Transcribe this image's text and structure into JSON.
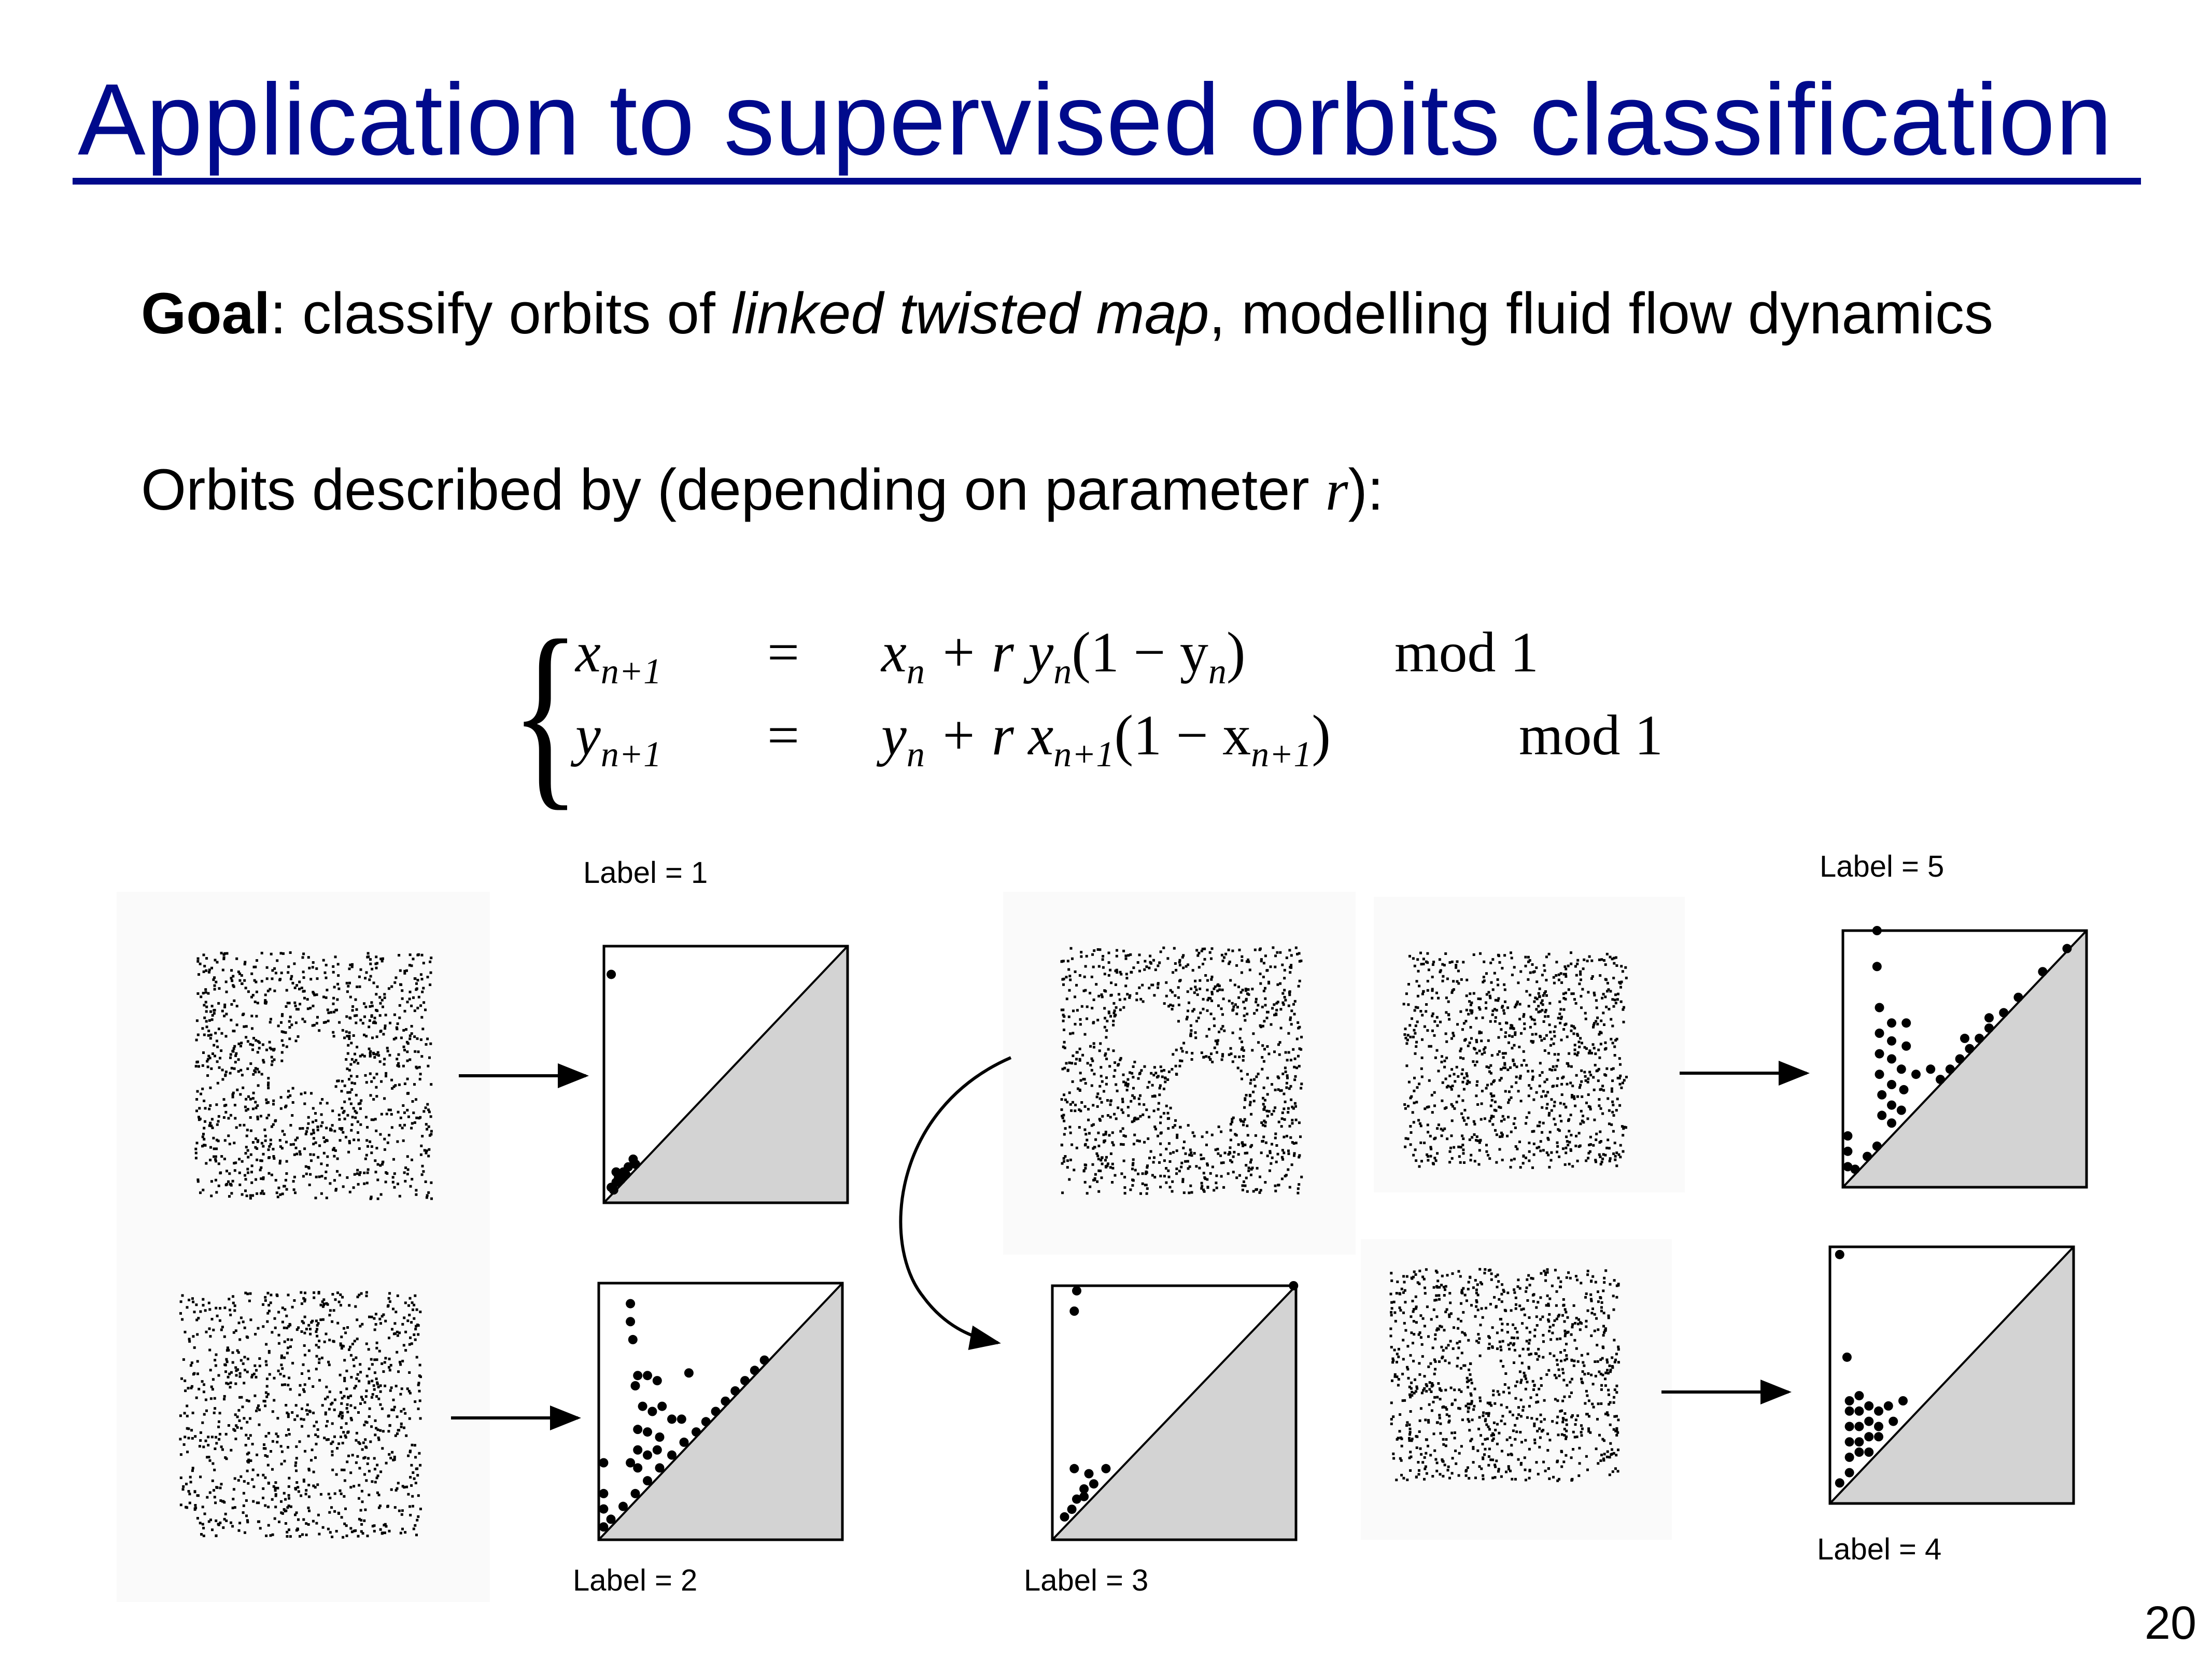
{
  "slide": {
    "title": "Application to supervised orbits classification",
    "goal_bold": "Goal",
    "goal_colon": ": classify orbits of ",
    "goal_italic": "linked twisted map",
    "goal_rest": ", modelling fluid flow dynamics",
    "orbits_text": "Orbits described by (depending on parameter ",
    "orbits_var": "r",
    "orbits_end": "):",
    "page_number": "20"
  },
  "equations": {
    "line1": {
      "lhs": "x",
      "lhs_sub": "n+1",
      "eq": "=",
      "rhs_a": "x",
      "rhs_a_sub": "n",
      "rhs_b": " + r y",
      "rhs_b_sub": "n",
      "rhs_c": "(1 − y",
      "rhs_c_sub": "n",
      "rhs_d": ")",
      "mod": "mod 1"
    },
    "line2": {
      "lhs": "y",
      "lhs_sub": "n+1",
      "eq": "=",
      "rhs_a": "y",
      "rhs_a_sub": "n",
      "rhs_b": " + r x",
      "rhs_b_sub": "n+1",
      "rhs_c": "(1 − x",
      "rhs_c_sub": "n+1",
      "rhs_d": ")",
      "mod": "mod 1"
    }
  },
  "labels": {
    "l1": "Label = 1",
    "l2": "Label = 2",
    "l3": "Label = 3",
    "l4": "Label = 4",
    "l5": "Label = 5"
  },
  "chart_data": [
    {
      "type": "scatter",
      "label": "Label = 1",
      "points": [
        [
          0.03,
          0.89
        ],
        [
          0.03,
          0.06
        ],
        [
          0.05,
          0.08
        ],
        [
          0.06,
          0.1
        ],
        [
          0.08,
          0.12
        ],
        [
          0.1,
          0.14
        ],
        [
          0.12,
          0.17
        ],
        [
          0.04,
          0.05
        ],
        [
          0.07,
          0.09
        ],
        [
          0.09,
          0.11
        ],
        [
          0.05,
          0.12
        ],
        [
          0.13,
          0.15
        ]
      ]
    },
    {
      "type": "scatter",
      "label": "Label = 2",
      "points": [
        [
          0.13,
          0.92
        ],
        [
          0.13,
          0.85
        ],
        [
          0.14,
          0.78
        ],
        [
          0.16,
          0.64
        ],
        [
          0.2,
          0.64
        ],
        [
          0.24,
          0.62
        ],
        [
          0.37,
          0.65
        ],
        [
          0.15,
          0.6
        ],
        [
          0.18,
          0.52
        ],
        [
          0.22,
          0.5
        ],
        [
          0.26,
          0.52
        ],
        [
          0.3,
          0.47
        ],
        [
          0.34,
          0.47
        ],
        [
          0.16,
          0.43
        ],
        [
          0.2,
          0.42
        ],
        [
          0.25,
          0.4
        ],
        [
          0.16,
          0.35
        ],
        [
          0.2,
          0.33
        ],
        [
          0.24,
          0.35
        ],
        [
          0.13,
          0.3
        ],
        [
          0.16,
          0.28
        ],
        [
          0.02,
          0.3
        ],
        [
          0.02,
          0.18
        ],
        [
          0.02,
          0.12
        ],
        [
          0.02,
          0.05
        ],
        [
          0.4,
          0.42
        ],
        [
          0.44,
          0.46
        ],
        [
          0.48,
          0.5
        ],
        [
          0.52,
          0.54
        ],
        [
          0.56,
          0.58
        ],
        [
          0.6,
          0.62
        ],
        [
          0.64,
          0.66
        ],
        [
          0.68,
          0.7
        ],
        [
          0.05,
          0.08
        ],
        [
          0.1,
          0.13
        ],
        [
          0.15,
          0.18
        ],
        [
          0.2,
          0.23
        ],
        [
          0.25,
          0.28
        ],
        [
          0.3,
          0.33
        ],
        [
          0.35,
          0.38
        ]
      ]
    },
    {
      "type": "scatter",
      "label": "Label = 3",
      "points": [
        [
          0.1,
          0.98
        ],
        [
          0.09,
          0.9
        ],
        [
          0.99,
          1.0
        ],
        [
          0.09,
          0.28
        ],
        [
          0.15,
          0.26
        ],
        [
          0.22,
          0.28
        ],
        [
          0.13,
          0.2
        ],
        [
          0.17,
          0.22
        ],
        [
          0.1,
          0.16
        ],
        [
          0.05,
          0.09
        ],
        [
          0.08,
          0.12
        ],
        [
          0.13,
          0.17
        ]
      ]
    },
    {
      "type": "scatter",
      "label": "Label = 4",
      "points": [
        [
          0.04,
          0.97
        ],
        [
          0.07,
          0.57
        ],
        [
          0.08,
          0.4
        ],
        [
          0.12,
          0.42
        ],
        [
          0.08,
          0.36
        ],
        [
          0.12,
          0.36
        ],
        [
          0.16,
          0.38
        ],
        [
          0.2,
          0.36
        ],
        [
          0.24,
          0.38
        ],
        [
          0.3,
          0.4
        ],
        [
          0.08,
          0.3
        ],
        [
          0.12,
          0.3
        ],
        [
          0.16,
          0.32
        ],
        [
          0.2,
          0.3
        ],
        [
          0.26,
          0.32
        ],
        [
          0.08,
          0.24
        ],
        [
          0.12,
          0.24
        ],
        [
          0.16,
          0.26
        ],
        [
          0.2,
          0.26
        ],
        [
          0.08,
          0.18
        ],
        [
          0.12,
          0.2
        ],
        [
          0.16,
          0.2
        ],
        [
          0.04,
          0.08
        ],
        [
          0.08,
          0.12
        ]
      ]
    },
    {
      "type": "scatter",
      "label": "Label = 5",
      "points": [
        [
          0.14,
          1.0
        ],
        [
          0.14,
          0.86
        ],
        [
          0.15,
          0.7
        ],
        [
          0.2,
          0.64
        ],
        [
          0.26,
          0.64
        ],
        [
          0.15,
          0.6
        ],
        [
          0.2,
          0.57
        ],
        [
          0.26,
          0.55
        ],
        [
          0.15,
          0.52
        ],
        [
          0.2,
          0.5
        ],
        [
          0.24,
          0.46
        ],
        [
          0.3,
          0.44
        ],
        [
          0.36,
          0.46
        ],
        [
          0.15,
          0.44
        ],
        [
          0.2,
          0.4
        ],
        [
          0.25,
          0.38
        ],
        [
          0.16,
          0.36
        ],
        [
          0.2,
          0.32
        ],
        [
          0.24,
          0.3
        ],
        [
          0.16,
          0.28
        ],
        [
          0.2,
          0.25
        ],
        [
          0.02,
          0.2
        ],
        [
          0.02,
          0.14
        ],
        [
          0.02,
          0.08
        ],
        [
          0.4,
          0.42
        ],
        [
          0.44,
          0.46
        ],
        [
          0.48,
          0.5
        ],
        [
          0.52,
          0.54
        ],
        [
          0.56,
          0.58
        ],
        [
          0.6,
          0.62
        ],
        [
          0.66,
          0.68
        ],
        [
          0.72,
          0.74
        ],
        [
          0.82,
          0.84
        ],
        [
          0.92,
          0.93
        ],
        [
          0.05,
          0.07
        ],
        [
          0.1,
          0.12
        ],
        [
          0.14,
          0.16
        ],
        [
          0.5,
          0.58
        ],
        [
          0.6,
          0.66
        ]
      ]
    }
  ]
}
